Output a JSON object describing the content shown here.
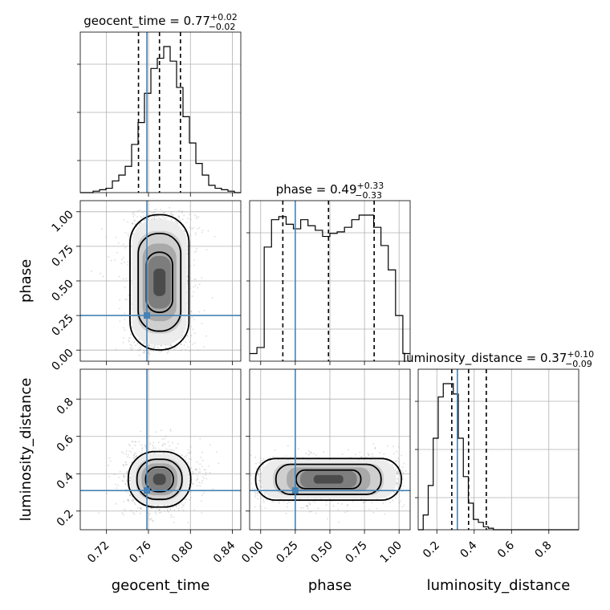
{
  "chart_data": {
    "type": "corner",
    "truth_color": "#4682b4",
    "parameters": [
      {
        "name": "geocent_time",
        "median": "0.77",
        "plus": "+0.02",
        "minus": "−0.02",
        "range": [
          0.695,
          0.848
        ],
        "ticks": [
          0.72,
          0.76,
          0.8,
          0.84
        ],
        "tick_labels": [
          "0.72",
          "0.76",
          "0.80",
          "0.84"
        ],
        "quantiles": [
          0.7505,
          0.7705,
          0.7905
        ],
        "truth": 0.7585,
        "hist": [
          0.0,
          0.0,
          0.01,
          0.02,
          0.03,
          0.08,
          0.12,
          0.18,
          0.33,
          0.48,
          0.68,
          0.85,
          0.92,
          1.0,
          0.9,
          0.72,
          0.52,
          0.34,
          0.2,
          0.12,
          0.05,
          0.03,
          0.02,
          0.01,
          0.0
        ]
      },
      {
        "name": "phase",
        "median": "0.49",
        "plus": "+0.33",
        "minus": "−0.33",
        "range": [
          -0.08,
          1.08
        ],
        "ticks": [
          0.0,
          0.25,
          0.5,
          0.75,
          1.0
        ],
        "tick_labels": [
          "0.00",
          "0.25",
          "0.50",
          "0.75",
          "1.00"
        ],
        "quantiles": [
          0.16,
          0.49,
          0.82
        ],
        "truth": 0.25,
        "hist": [
          0.05,
          0.09,
          0.75,
          0.93,
          0.95,
          0.9,
          0.87,
          0.93,
          0.89,
          0.86,
          0.82,
          0.84,
          0.85,
          0.88,
          0.93,
          0.96,
          0.96,
          0.88,
          0.76,
          0.6,
          0.3,
          0.05
        ]
      },
      {
        "name": "luminosity_distance",
        "median": "0.37",
        "plus": "+0.10",
        "minus": "−0.09",
        "range": [
          0.1,
          0.96
        ],
        "ticks": [
          0.2,
          0.4,
          0.6,
          0.8
        ],
        "tick_labels": [
          "0.2",
          "0.4",
          "0.6",
          "0.8"
        ],
        "quantiles": [
          0.28,
          0.37,
          0.465
        ],
        "truth": 0.31,
        "hist": [
          0.0,
          0.1,
          0.3,
          0.62,
          0.9,
          0.99,
          0.99,
          0.92,
          0.62,
          0.36,
          0.18,
          0.07,
          0.05,
          0.02,
          0.01,
          0.0,
          0.0,
          0.0,
          0.0,
          0.0,
          0.0,
          0.0,
          0.0,
          0.0,
          0.0,
          0.0,
          0.0,
          0.0,
          0.0,
          0.0,
          0.0,
          0.0
        ]
      }
    ]
  }
}
